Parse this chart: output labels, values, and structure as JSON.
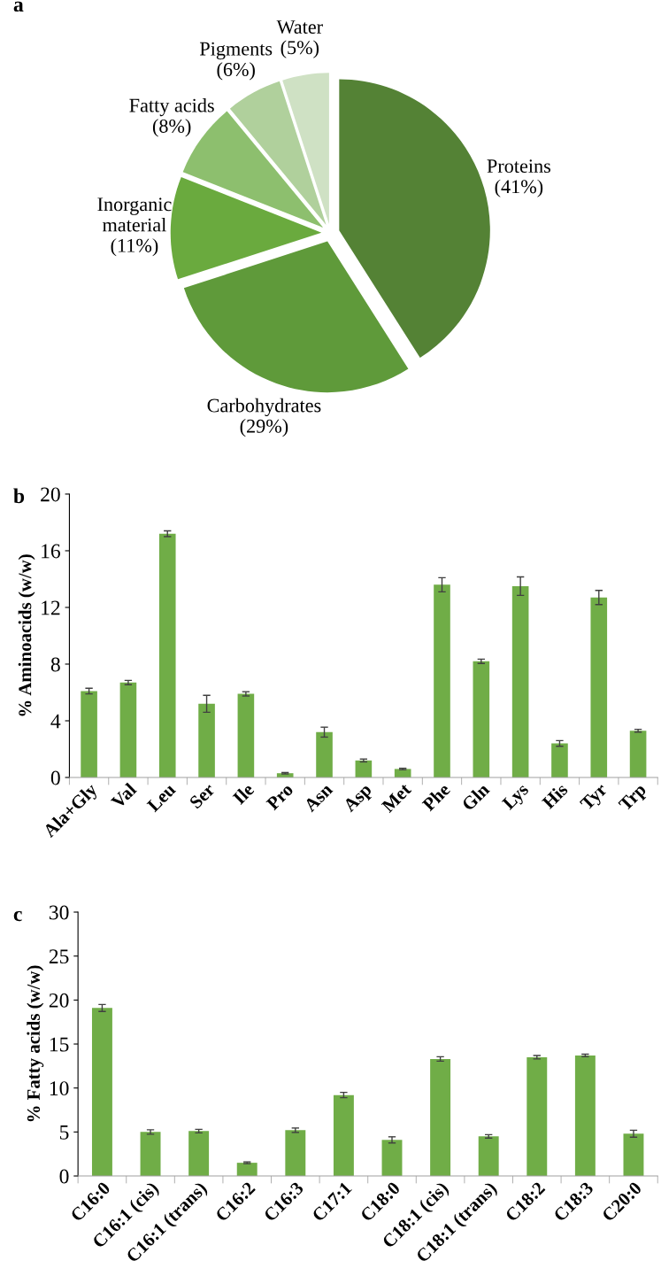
{
  "chart_data": [
    {
      "type": "pie",
      "title": "a",
      "categories": [
        "Proteins",
        "Carbohydrates",
        "Inorganic\nmaterial",
        "Fatty acids",
        "Pigments",
        "Water"
      ],
      "values": [
        41,
        29,
        11,
        8,
        6,
        5
      ],
      "value_labels": [
        "(41%)",
        "(29%)",
        "(11%)",
        "(8%)",
        "(6%)",
        "(5%)"
      ],
      "colors": [
        "#548235",
        "#5f9a3a",
        "#6aaa3e",
        "#8dbf6e",
        "#b0d09c",
        "#cfe1c4"
      ]
    },
    {
      "type": "bar",
      "title": "b",
      "ylabel": "% Aminoacids (w/w)",
      "categories": [
        "Ala+Gly",
        "Val",
        "Leu",
        "Ser",
        "Ile",
        "Pro",
        "Asn",
        "Asp",
        "Met",
        "Phe",
        "Gln",
        "Lys",
        "His",
        "Tyr",
        "Trp"
      ],
      "values": [
        6.1,
        6.7,
        17.2,
        5.2,
        5.9,
        0.3,
        3.2,
        1.2,
        0.6,
        13.6,
        8.2,
        13.5,
        2.4,
        12.7,
        3.3
      ],
      "errors": [
        0.2,
        0.15,
        0.2,
        0.6,
        0.15,
        0.05,
        0.35,
        0.1,
        0.05,
        0.5,
        0.15,
        0.65,
        0.2,
        0.5,
        0.1
      ],
      "color": "#70ad47",
      "ylim": [
        0,
        20
      ],
      "yticks": [
        0,
        4,
        8,
        12,
        16,
        20
      ]
    },
    {
      "type": "bar",
      "title": "c",
      "ylabel": "% Fatty acids (w/w)",
      "categories": [
        "C16:0",
        "C16:1 (cis)",
        "C16:1 (trans)",
        "C16:2",
        "C16:3",
        "C17:1",
        "C18:0",
        "C18:1 (cis)",
        "C18:1 (trans)",
        "C18:2",
        "C18:3",
        "C20:0"
      ],
      "values": [
        19.1,
        5.0,
        5.1,
        1.5,
        5.2,
        9.2,
        4.1,
        13.3,
        4.5,
        13.5,
        13.7,
        4.8
      ],
      "errors": [
        0.4,
        0.25,
        0.2,
        0.1,
        0.25,
        0.3,
        0.35,
        0.25,
        0.2,
        0.2,
        0.15,
        0.4
      ],
      "color": "#70ad47",
      "ylim": [
        0,
        30
      ],
      "yticks": [
        0,
        5,
        10,
        15,
        20,
        25,
        30
      ]
    }
  ]
}
